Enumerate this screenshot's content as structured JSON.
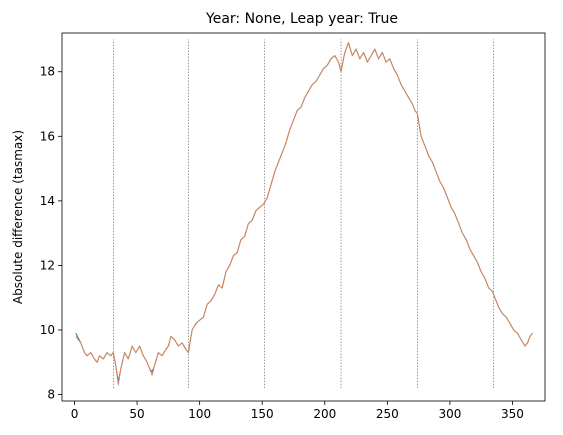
{
  "chart_data": {
    "type": "line",
    "title": "Year: None, Leap year: True",
    "xlabel": "",
    "ylabel": "Absolute difference (tasmax)",
    "xlim": [
      -10,
      376
    ],
    "ylim": [
      7.8,
      19.2
    ],
    "xticks": [
      0,
      50,
      100,
      150,
      200,
      250,
      300,
      350
    ],
    "yticks": [
      8,
      10,
      12,
      14,
      16,
      18
    ],
    "grid": false,
    "legend": "none",
    "vertical_lines": {
      "x": [
        31,
        91,
        152,
        213,
        274,
        335
      ],
      "y_range": [
        8.2,
        19.0
      ],
      "style": "dotted",
      "color": "#555555"
    },
    "series": [
      {
        "color": "#1f77b4",
        "points": [
          [
            1,
            9.9
          ],
          [
            5,
            9.6
          ],
          [
            8,
            9.3
          ],
          [
            10,
            9.2
          ],
          [
            13,
            9.3
          ],
          [
            16,
            9.1
          ],
          [
            18,
            9.0
          ],
          [
            20,
            9.2
          ],
          [
            23,
            9.1
          ],
          [
            26,
            9.3
          ],
          [
            29,
            9.2
          ],
          [
            31,
            9.3
          ],
          [
            33,
            8.9
          ],
          [
            35,
            8.4
          ],
          [
            37,
            8.8
          ],
          [
            40,
            9.3
          ],
          [
            43,
            9.1
          ],
          [
            46,
            9.5
          ],
          [
            49,
            9.3
          ],
          [
            52,
            9.5
          ],
          [
            55,
            9.2
          ],
          [
            58,
            9.0
          ],
          [
            60,
            8.8
          ],
          [
            62,
            8.7
          ],
          [
            64,
            8.9
          ],
          [
            67,
            9.3
          ],
          [
            70,
            9.2
          ],
          [
            73,
            9.4
          ],
          [
            75,
            9.5
          ],
          [
            77,
            9.8
          ],
          [
            80,
            9.7
          ],
          [
            83,
            9.5
          ],
          [
            86,
            9.6
          ],
          [
            89,
            9.4
          ],
          [
            91,
            9.3
          ],
          [
            94,
            10.0
          ],
          [
            97,
            10.2
          ],
          [
            100,
            10.3
          ],
          [
            103,
            10.4
          ],
          [
            106,
            10.8
          ],
          [
            109,
            10.9
          ],
          [
            112,
            11.1
          ],
          [
            115,
            11.4
          ],
          [
            118,
            11.3
          ],
          [
            121,
            11.8
          ],
          [
            124,
            12.0
          ],
          [
            127,
            12.3
          ],
          [
            130,
            12.4
          ],
          [
            133,
            12.8
          ],
          [
            136,
            12.9
          ],
          [
            139,
            13.3
          ],
          [
            142,
            13.4
          ],
          [
            145,
            13.7
          ],
          [
            148,
            13.8
          ],
          [
            151,
            13.9
          ],
          [
            154,
            14.1
          ],
          [
            157,
            14.5
          ],
          [
            160,
            14.9
          ],
          [
            163,
            15.2
          ],
          [
            166,
            15.5
          ],
          [
            169,
            15.8
          ],
          [
            172,
            16.2
          ],
          [
            175,
            16.5
          ],
          [
            178,
            16.8
          ],
          [
            181,
            16.9
          ],
          [
            184,
            17.2
          ],
          [
            187,
            17.4
          ],
          [
            190,
            17.6
          ],
          [
            193,
            17.7
          ],
          [
            196,
            17.9
          ],
          [
            199,
            18.1
          ],
          [
            202,
            18.2
          ],
          [
            205,
            18.4
          ],
          [
            208,
            18.5
          ],
          [
            211,
            18.3
          ],
          [
            213,
            18.0
          ],
          [
            216,
            18.6
          ],
          [
            219,
            18.9
          ],
          [
            222,
            18.5
          ],
          [
            225,
            18.7
          ],
          [
            228,
            18.4
          ],
          [
            231,
            18.6
          ],
          [
            234,
            18.3
          ],
          [
            237,
            18.5
          ],
          [
            240,
            18.7
          ],
          [
            243,
            18.4
          ],
          [
            246,
            18.6
          ],
          [
            249,
            18.3
          ],
          [
            252,
            18.4
          ],
          [
            255,
            18.1
          ],
          [
            258,
            17.9
          ],
          [
            261,
            17.6
          ],
          [
            264,
            17.4
          ],
          [
            267,
            17.2
          ],
          [
            270,
            17.0
          ],
          [
            272,
            16.8
          ],
          [
            274,
            16.7
          ],
          [
            277,
            16.0
          ],
          [
            280,
            15.7
          ],
          [
            283,
            15.4
          ],
          [
            286,
            15.2
          ],
          [
            289,
            14.9
          ],
          [
            292,
            14.6
          ],
          [
            295,
            14.4
          ],
          [
            298,
            14.1
          ],
          [
            301,
            13.8
          ],
          [
            304,
            13.6
          ],
          [
            307,
            13.3
          ],
          [
            310,
            13.0
          ],
          [
            313,
            12.8
          ],
          [
            316,
            12.5
          ],
          [
            319,
            12.3
          ],
          [
            322,
            12.1
          ],
          [
            325,
            11.8
          ],
          [
            328,
            11.6
          ],
          [
            331,
            11.3
          ],
          [
            334,
            11.2
          ],
          [
            336,
            11.0
          ],
          [
            339,
            10.7
          ],
          [
            342,
            10.5
          ],
          [
            345,
            10.4
          ],
          [
            348,
            10.2
          ],
          [
            351,
            10.0
          ],
          [
            354,
            9.9
          ],
          [
            357,
            9.7
          ],
          [
            360,
            9.5
          ],
          [
            362,
            9.6
          ],
          [
            364,
            9.8
          ],
          [
            366,
            9.9
          ]
        ]
      },
      {
        "color": "#dd8452",
        "points": [
          [
            1,
            9.8
          ],
          [
            5,
            9.6
          ],
          [
            8,
            9.3
          ],
          [
            10,
            9.2
          ],
          [
            13,
            9.3
          ],
          [
            16,
            9.1
          ],
          [
            18,
            9.0
          ],
          [
            20,
            9.2
          ],
          [
            23,
            9.1
          ],
          [
            26,
            9.3
          ],
          [
            29,
            9.2
          ],
          [
            31,
            9.3
          ],
          [
            33,
            8.9
          ],
          [
            35,
            8.3
          ],
          [
            37,
            8.8
          ],
          [
            40,
            9.3
          ],
          [
            43,
            9.1
          ],
          [
            46,
            9.5
          ],
          [
            49,
            9.3
          ],
          [
            52,
            9.5
          ],
          [
            55,
            9.2
          ],
          [
            58,
            9.0
          ],
          [
            60,
            8.8
          ],
          [
            62,
            8.6
          ],
          [
            64,
            8.9
          ],
          [
            67,
            9.3
          ],
          [
            70,
            9.2
          ],
          [
            73,
            9.4
          ],
          [
            75,
            9.5
          ],
          [
            77,
            9.8
          ],
          [
            80,
            9.7
          ],
          [
            83,
            9.5
          ],
          [
            86,
            9.6
          ],
          [
            89,
            9.4
          ],
          [
            91,
            9.3
          ],
          [
            94,
            10.0
          ],
          [
            97,
            10.2
          ],
          [
            100,
            10.3
          ],
          [
            103,
            10.4
          ],
          [
            106,
            10.8
          ],
          [
            109,
            10.9
          ],
          [
            112,
            11.1
          ],
          [
            115,
            11.4
          ],
          [
            118,
            11.3
          ],
          [
            121,
            11.8
          ],
          [
            124,
            12.0
          ],
          [
            127,
            12.3
          ],
          [
            130,
            12.4
          ],
          [
            133,
            12.8
          ],
          [
            136,
            12.9
          ],
          [
            139,
            13.3
          ],
          [
            142,
            13.4
          ],
          [
            145,
            13.7
          ],
          [
            148,
            13.8
          ],
          [
            151,
            13.9
          ],
          [
            154,
            14.1
          ],
          [
            157,
            14.5
          ],
          [
            160,
            14.9
          ],
          [
            163,
            15.2
          ],
          [
            166,
            15.5
          ],
          [
            169,
            15.8
          ],
          [
            172,
            16.2
          ],
          [
            175,
            16.5
          ],
          [
            178,
            16.8
          ],
          [
            181,
            16.9
          ],
          [
            184,
            17.2
          ],
          [
            187,
            17.4
          ],
          [
            190,
            17.6
          ],
          [
            193,
            17.7
          ],
          [
            196,
            17.9
          ],
          [
            199,
            18.1
          ],
          [
            202,
            18.2
          ],
          [
            205,
            18.4
          ],
          [
            208,
            18.5
          ],
          [
            211,
            18.3
          ],
          [
            213,
            18.0
          ],
          [
            216,
            18.6
          ],
          [
            219,
            18.9
          ],
          [
            222,
            18.5
          ],
          [
            225,
            18.7
          ],
          [
            228,
            18.4
          ],
          [
            231,
            18.6
          ],
          [
            234,
            18.3
          ],
          [
            237,
            18.5
          ],
          [
            240,
            18.7
          ],
          [
            243,
            18.4
          ],
          [
            246,
            18.6
          ],
          [
            249,
            18.3
          ],
          [
            252,
            18.4
          ],
          [
            255,
            18.1
          ],
          [
            258,
            17.9
          ],
          [
            261,
            17.6
          ],
          [
            264,
            17.4
          ],
          [
            267,
            17.2
          ],
          [
            270,
            17.0
          ],
          [
            272,
            16.8
          ],
          [
            274,
            16.7
          ],
          [
            277,
            16.0
          ],
          [
            280,
            15.7
          ],
          [
            283,
            15.4
          ],
          [
            286,
            15.2
          ],
          [
            289,
            14.9
          ],
          [
            292,
            14.6
          ],
          [
            295,
            14.4
          ],
          [
            298,
            14.1
          ],
          [
            301,
            13.8
          ],
          [
            304,
            13.6
          ],
          [
            307,
            13.3
          ],
          [
            310,
            13.0
          ],
          [
            313,
            12.8
          ],
          [
            316,
            12.5
          ],
          [
            319,
            12.3
          ],
          [
            322,
            12.1
          ],
          [
            325,
            11.8
          ],
          [
            328,
            11.6
          ],
          [
            331,
            11.3
          ],
          [
            334,
            11.2
          ],
          [
            336,
            11.0
          ],
          [
            339,
            10.7
          ],
          [
            342,
            10.5
          ],
          [
            345,
            10.4
          ],
          [
            348,
            10.2
          ],
          [
            351,
            10.0
          ],
          [
            354,
            9.9
          ],
          [
            357,
            9.7
          ],
          [
            360,
            9.5
          ],
          [
            362,
            9.6
          ],
          [
            364,
            9.8
          ],
          [
            366,
            9.9
          ]
        ]
      }
    ]
  }
}
